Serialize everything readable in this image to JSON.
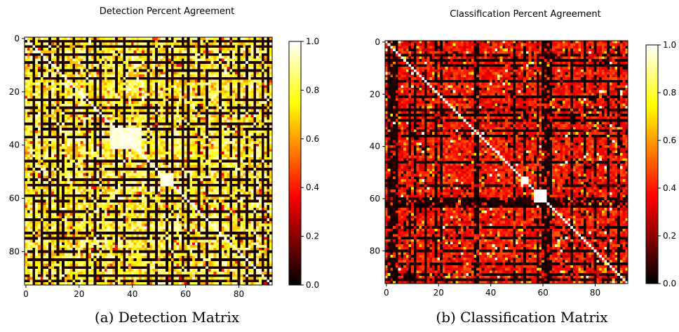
{
  "chart_data": [
    {
      "type": "heatmap",
      "title": "Detection Percent Agreement",
      "caption": "(a) Detection Matrix",
      "colormap": "hot",
      "matrix_size": 93,
      "x_ticks": [
        0,
        20,
        40,
        60,
        80
      ],
      "y_ticks": [
        0,
        20,
        40,
        60,
        80
      ],
      "xlim": [
        0,
        92
      ],
      "ylim": [
        92,
        0
      ],
      "colorbar_range": [
        0.0,
        1.0
      ],
      "colorbar_ticks": [
        "0.0",
        "0.2",
        "0.4",
        "0.6",
        "0.8",
        "1.0"
      ],
      "diagonal_value": 1.0,
      "dominant_values": "mostly 0.6–1.0 (yellow/orange) with rows/columns of 0.0 (black)",
      "dark_rows": [
        1,
        3,
        6,
        9,
        12,
        15,
        23,
        26,
        28,
        32,
        34,
        37,
        46,
        49,
        53,
        55,
        59,
        61,
        65,
        68,
        73,
        75,
        80,
        83,
        86,
        89,
        91
      ],
      "dark_cols": [
        3,
        6,
        9,
        12,
        14,
        18,
        23,
        26,
        28,
        34,
        37,
        46,
        49,
        53,
        55,
        59,
        61,
        65,
        68,
        73,
        77,
        80,
        83,
        86,
        89,
        91
      ],
      "bright_blocks": [
        {
          "rows": [
            34,
            41
          ],
          "cols": [
            32,
            43
          ],
          "value": 1.0
        },
        {
          "rows": [
            51,
            55
          ],
          "cols": [
            51,
            55
          ],
          "value": 1.0
        }
      ]
    },
    {
      "type": "heatmap",
      "title": "Classification Percent Agreement",
      "caption": "(b) Classification Matrix",
      "colormap": "hot",
      "matrix_size": 93,
      "x_ticks": [
        0,
        20,
        40,
        60,
        80
      ],
      "y_ticks": [
        0,
        20,
        40,
        60,
        80
      ],
      "xlim": [
        0,
        92
      ],
      "ylim": [
        92,
        0
      ],
      "colorbar_range": [
        0.0,
        1.0
      ],
      "colorbar_ticks": [
        "0.0",
        "0.2",
        "0.4",
        "0.6",
        "0.8",
        "1.0"
      ],
      "diagonal_value": 1.0,
      "dominant_values": "mostly 0.3–0.5 (red) with many 0.0 (black) cells",
      "dark_rows": [
        5,
        7,
        9,
        15,
        21,
        26,
        28,
        30,
        34,
        36,
        46,
        55,
        60,
        61,
        62,
        63,
        71,
        75,
        80,
        85,
        89,
        91
      ],
      "dark_cols": [
        1,
        2,
        3,
        4,
        9,
        11,
        15,
        19,
        21,
        34,
        35,
        49,
        53,
        58,
        60,
        61,
        62,
        63,
        71,
        76,
        80,
        85,
        89
      ],
      "bright_blocks": [
        {
          "rows": [
            57,
            61
          ],
          "cols": [
            57,
            61
          ],
          "value": 1.0
        },
        {
          "rows": [
            52,
            54
          ],
          "cols": [
            52,
            54
          ],
          "value": 1.0
        }
      ]
    }
  ]
}
